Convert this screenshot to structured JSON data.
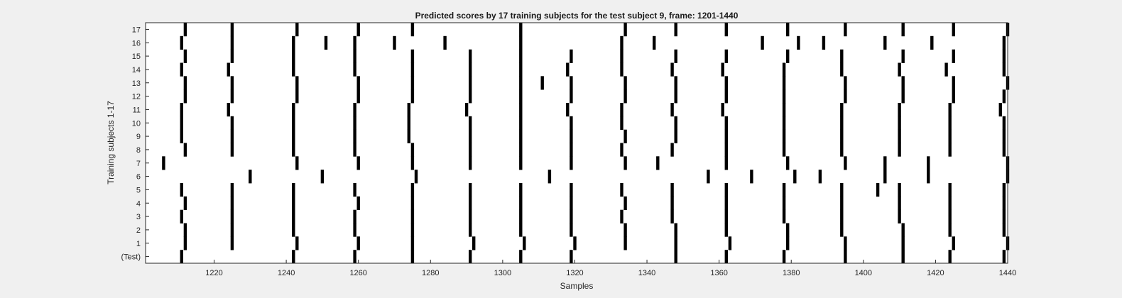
{
  "chart_data": {
    "type": "heatmap",
    "title": "Predicted scores by 17 training subjects for the test subject 9, frame: 1201-1440",
    "xlabel": "Samples",
    "ylabel": "Training subjects 1-17",
    "xlim": [
      1201,
      1440
    ],
    "x_ticks": [
      1220,
      1240,
      1260,
      1280,
      1300,
      1320,
      1340,
      1360,
      1380,
      1400,
      1420,
      1440
    ],
    "y_tick_labels": [
      "(Test)",
      "1",
      "2",
      "3",
      "4",
      "5",
      "6",
      "7",
      "8",
      "9",
      "10",
      "11",
      "12",
      "13",
      "14",
      "15",
      "16",
      "17"
    ],
    "grid": false,
    "legend": "none",
    "colors": {
      "background": "#ffffff",
      "mark": "#000000"
    },
    "rows": [
      {
        "label": "(Test)",
        "x": [
          1211,
          1242,
          1259,
          1275,
          1291,
          1305,
          1319,
          1348,
          1362,
          1378,
          1395,
          1411,
          1424,
          1439
        ]
      },
      {
        "label": "1",
        "x": [
          1212,
          1225,
          1243,
          1260,
          1275,
          1292,
          1306,
          1320,
          1334,
          1348,
          1363,
          1379,
          1395,
          1411,
          1425,
          1440
        ]
      },
      {
        "label": "2",
        "x": [
          1212,
          1225,
          1242,
          1259,
          1275,
          1291,
          1305,
          1319,
          1334,
          1348,
          1362,
          1379,
          1394,
          1411,
          1424,
          1439
        ]
      },
      {
        "label": "3",
        "x": [
          1211,
          1225,
          1242,
          1259,
          1275,
          1291,
          1305,
          1319,
          1333,
          1347,
          1362,
          1378,
          1394,
          1410,
          1424,
          1439
        ]
      },
      {
        "label": "4",
        "x": [
          1212,
          1225,
          1242,
          1260,
          1275,
          1291,
          1305,
          1319,
          1334,
          1347,
          1362,
          1378,
          1394,
          1410,
          1424,
          1439
        ]
      },
      {
        "label": "5",
        "x": [
          1211,
          1225,
          1242,
          1259,
          1275,
          1291,
          1305,
          1319,
          1333,
          1347,
          1362,
          1378,
          1394,
          1404,
          1410,
          1424,
          1439
        ]
      },
      {
        "label": "6",
        "x": [
          1230,
          1250,
          1276,
          1313,
          1357,
          1369,
          1381,
          1388,
          1406,
          1418,
          1440
        ]
      },
      {
        "label": "7",
        "x": [
          1206,
          1243,
          1260,
          1275,
          1291,
          1305,
          1319,
          1334,
          1343,
          1362,
          1379,
          1395,
          1406,
          1418,
          1440
        ]
      },
      {
        "label": "8",
        "x": [
          1212,
          1225,
          1242,
          1259,
          1275,
          1291,
          1305,
          1319,
          1333,
          1347,
          1362,
          1378,
          1394,
          1410,
          1424,
          1439
        ]
      },
      {
        "label": "9",
        "x": [
          1211,
          1225,
          1242,
          1259,
          1274,
          1291,
          1305,
          1319,
          1334,
          1348,
          1362,
          1378,
          1394,
          1410,
          1424,
          1439
        ]
      },
      {
        "label": "10",
        "x": [
          1211,
          1225,
          1242,
          1259,
          1274,
          1291,
          1305,
          1319,
          1333,
          1348,
          1362,
          1378,
          1394,
          1410,
          1424,
          1439
        ]
      },
      {
        "label": "11",
        "x": [
          1211,
          1224,
          1242,
          1259,
          1274,
          1290,
          1305,
          1318,
          1333,
          1347,
          1361,
          1378,
          1394,
          1410,
          1424,
          1438
        ]
      },
      {
        "label": "12",
        "x": [
          1212,
          1225,
          1243,
          1260,
          1275,
          1291,
          1305,
          1319,
          1334,
          1348,
          1362,
          1378,
          1395,
          1411,
          1425,
          1439
        ]
      },
      {
        "label": "13",
        "x": [
          1212,
          1225,
          1243,
          1260,
          1275,
          1291,
          1305,
          1311,
          1319,
          1334,
          1348,
          1362,
          1378,
          1395,
          1411,
          1425,
          1440
        ]
      },
      {
        "label": "14",
        "x": [
          1211,
          1224,
          1242,
          1259,
          1275,
          1291,
          1305,
          1318,
          1333,
          1347,
          1361,
          1378,
          1394,
          1410,
          1423,
          1439
        ]
      },
      {
        "label": "15",
        "x": [
          1212,
          1225,
          1242,
          1259,
          1275,
          1291,
          1305,
          1319,
          1333,
          1348,
          1362,
          1379,
          1394,
          1411,
          1425,
          1439
        ]
      },
      {
        "label": "16",
        "x": [
          1211,
          1225,
          1242,
          1251,
          1259,
          1270,
          1284,
          1305,
          1333,
          1342,
          1372,
          1382,
          1389,
          1406,
          1419,
          1439
        ]
      },
      {
        "label": "17",
        "x": [
          1212,
          1225,
          1243,
          1260,
          1275,
          1305,
          1334,
          1348,
          1362,
          1379,
          1395,
          1411,
          1425,
          1440
        ]
      }
    ]
  }
}
